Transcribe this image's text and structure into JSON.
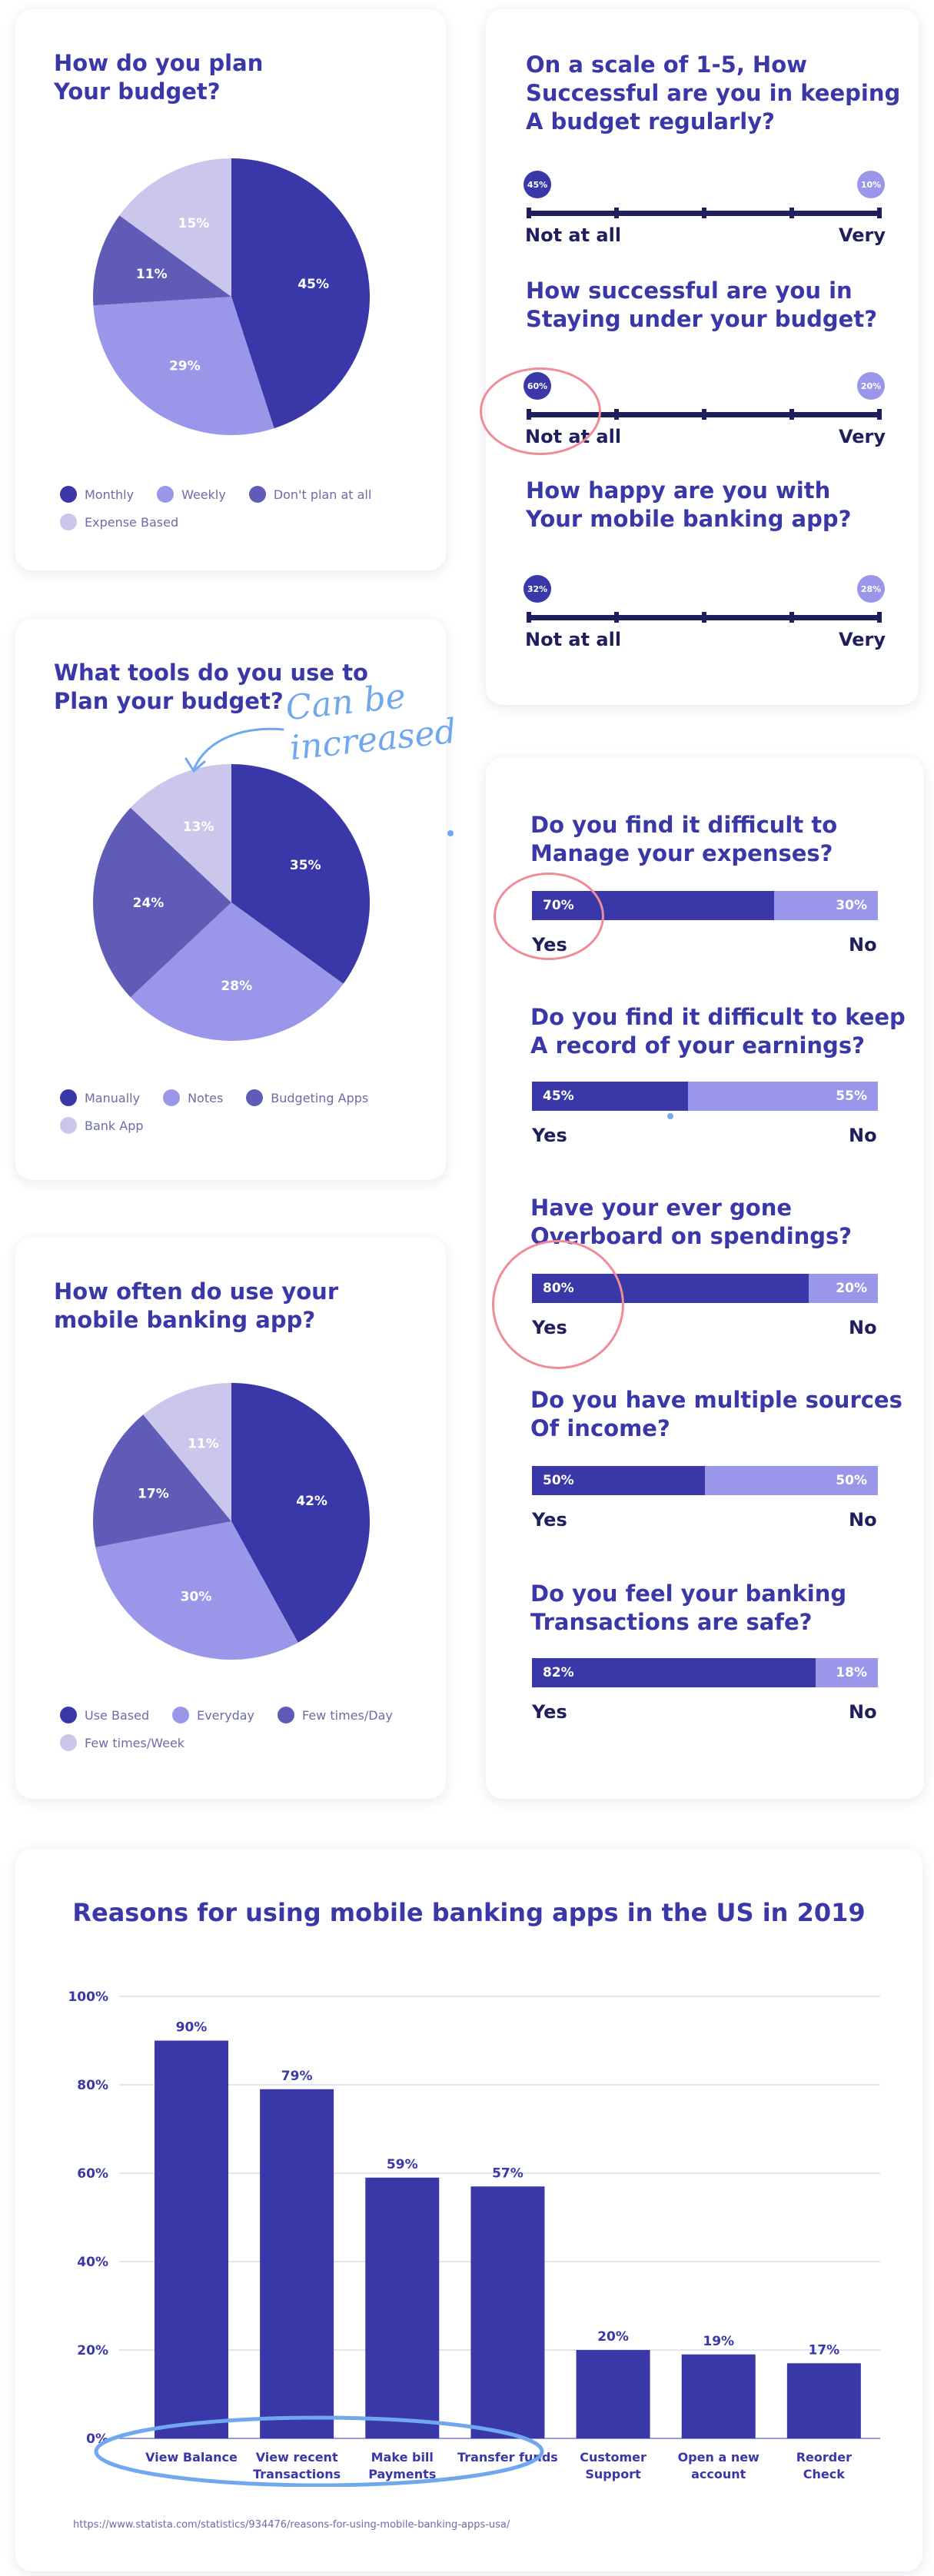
{
  "colors": {
    "dark": "#3a38a8",
    "mid": "#5f5cb8",
    "light": "#9a97ea",
    "pale": "#cbc6ec",
    "axis": "#1f1f5e",
    "annot_red": "#ef8c97",
    "annot_blue": "#6fa8ef"
  },
  "pie_charts": [
    {
      "title": "How do you plan\nYour budget?",
      "slices": [
        {
          "label": "Monthly",
          "value": 45,
          "color": "#3a38a8"
        },
        {
          "label": "Weekly",
          "value": 29,
          "color": "#9a97ea"
        },
        {
          "label": "Don't plan at all",
          "value": 11,
          "color": "#5f5cb8"
        },
        {
          "label": "Expense Based",
          "value": 15,
          "color": "#cbc6ec"
        }
      ]
    },
    {
      "title": "What tools do you use to\nPlan your budget?",
      "slices": [
        {
          "label": "Manually",
          "value": 35,
          "color": "#3a38a8"
        },
        {
          "label": "Notes",
          "value": 28,
          "color": "#9a97ea"
        },
        {
          "label": "Budgeting Apps",
          "value": 24,
          "color": "#5f5cb8"
        },
        {
          "label": "Bank App",
          "value": 13,
          "color": "#cbc6ec"
        }
      ]
    },
    {
      "title": "How often do use your\nmobile banking app?",
      "slices": [
        {
          "label": "Use Based",
          "value": 42,
          "color": "#3a38a8"
        },
        {
          "label": "Everyday",
          "value": 30,
          "color": "#9a97ea"
        },
        {
          "label": "Few times/Day",
          "value": 17,
          "color": "#5f5cb8"
        },
        {
          "label": "Few times/Week",
          "value": 11,
          "color": "#cbc6ec"
        }
      ]
    }
  ],
  "scales": [
    {
      "title": "On a scale of 1-5, How\nSuccessful are you in keeping\nA budget regularly?",
      "low_value": "45%",
      "high_value": "10%",
      "low_label": "Not at all",
      "high_label": "Very"
    },
    {
      "title": "How successful are you in\nStaying under your budget?",
      "low_value": "60%",
      "high_value": "20%",
      "low_label": "Not at all",
      "high_label": "Very"
    },
    {
      "title": "How happy are you with\nYour mobile banking app?",
      "low_value": "32%",
      "high_value": "28%",
      "low_label": "Not at all",
      "high_label": "Very"
    }
  ],
  "yes_no": [
    {
      "title": "Do you find it difficult to\nManage your expenses?",
      "yes": 70,
      "no": 30,
      "yes_text": "70%",
      "no_text": "30%",
      "yes_label": "Yes",
      "no_label": "No"
    },
    {
      "title": "Do you find it difficult to keep\nA record of your earnings?",
      "yes": 45,
      "no": 55,
      "yes_text": "45%",
      "no_text": "55%",
      "yes_label": "Yes",
      "no_label": "No"
    },
    {
      "title": "Have your ever gone\nOverboard on spendings?",
      "yes": 80,
      "no": 20,
      "yes_text": "80%",
      "no_text": "20%",
      "yes_label": "Yes",
      "no_label": "No"
    },
    {
      "title": "Do you have multiple sources\nOf income?",
      "yes": 50,
      "no": 50,
      "yes_text": "50%",
      "no_text": "50%",
      "yes_label": "Yes",
      "no_label": "No"
    },
    {
      "title": "Do you feel your banking\nTransactions are safe?",
      "yes": 82,
      "no": 18,
      "yes_text": "82%",
      "no_text": "18%",
      "yes_label": "Yes",
      "no_label": "No"
    }
  ],
  "annotation_text": "Can be\nincreased",
  "chart_data": {
    "type": "bar",
    "title": "Reasons for using mobile banking apps in the US in 2019",
    "categories": [
      "View Balance",
      "View recent\nTransactions",
      "Make bill\nPayments",
      "Transfer funds",
      "Customer\nSupport",
      "Open a new\naccount",
      "Reorder\nCheck"
    ],
    "values": [
      90,
      79,
      59,
      57,
      20,
      19,
      17
    ],
    "value_labels": [
      "90%",
      "79%",
      "59%",
      "57%",
      "20%",
      "19%",
      "17%"
    ],
    "yticks": [
      "0%",
      "20%",
      "40%",
      "60%",
      "80%",
      "100%"
    ],
    "ylim": [
      0,
      100
    ],
    "grid": true,
    "source": "https://www.statista.com/statistics/934476/reasons-for-using-mobile-banking-apps-usa/"
  }
}
